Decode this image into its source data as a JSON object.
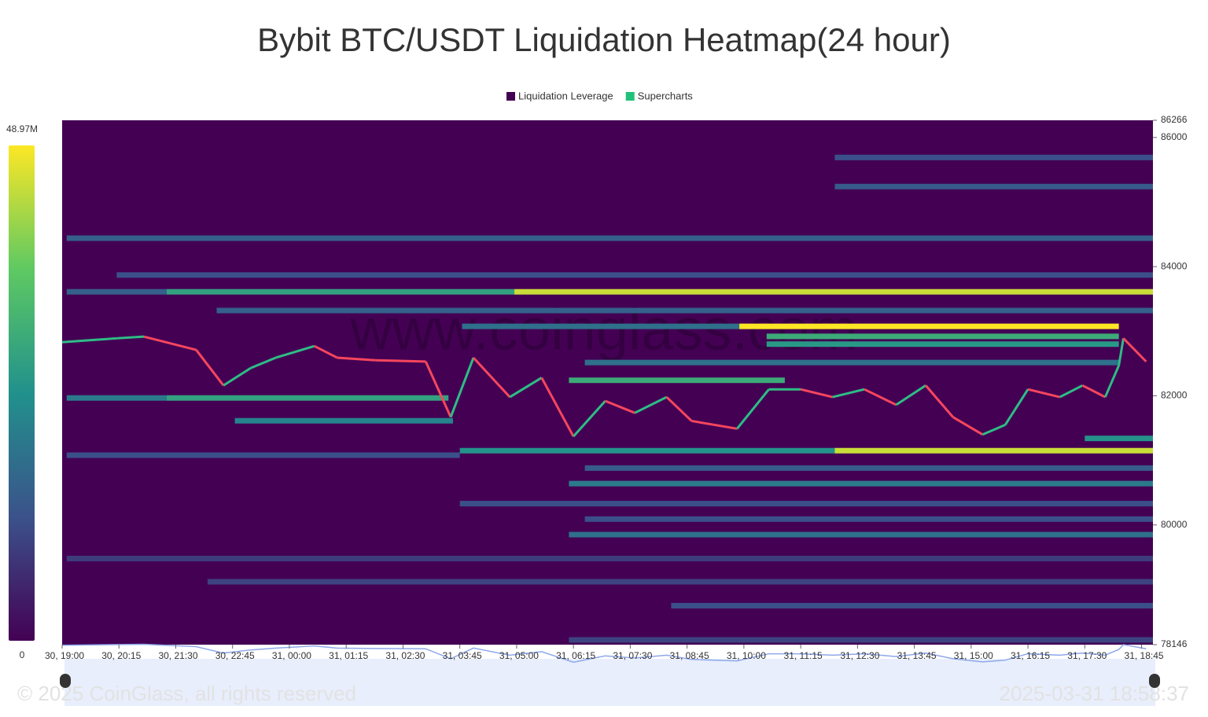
{
  "chart_data": {
    "type": "heatmap",
    "title": "Bybit BTC/USDT Liquidation Heatmap(24 hour)",
    "legend": [
      {
        "name": "Liquidation Leverage",
        "color": "#440154"
      },
      {
        "name": "Supercharts",
        "color": "#21c17a"
      }
    ],
    "watermark": "www.coinglass.com",
    "footer_left": "© 2025 CoinGlass, all rights reserved",
    "footer_right": "2025-03-31 18:58:37",
    "background_color": "#440154",
    "colorscale": [
      "#440154",
      "#3b528b",
      "#21918c",
      "#5ec962",
      "#fde725"
    ],
    "clim": [
      0,
      48.97
    ],
    "cticks": [
      {
        "value": 0,
        "label": "0"
      },
      {
        "value": 48.97,
        "label": "48.97M"
      }
    ],
    "xlim": [
      0,
      24
    ],
    "xticks": [
      {
        "value": 0,
        "label": "30, 19:00"
      },
      {
        "value": 1.25,
        "label": "30, 20:15"
      },
      {
        "value": 2.5,
        "label": "30, 21:30"
      },
      {
        "value": 3.75,
        "label": "30, 22:45"
      },
      {
        "value": 5,
        "label": "31, 00:00"
      },
      {
        "value": 6.25,
        "label": "31, 01:15"
      },
      {
        "value": 7.5,
        "label": "31, 02:30"
      },
      {
        "value": 8.75,
        "label": "31, 03:45"
      },
      {
        "value": 10,
        "label": "31, 05:00"
      },
      {
        "value": 11.25,
        "label": "31, 06:15"
      },
      {
        "value": 12.5,
        "label": "31, 07:30"
      },
      {
        "value": 13.75,
        "label": "31, 08:45"
      },
      {
        "value": 15,
        "label": "31, 10:00"
      },
      {
        "value": 16.25,
        "label": "31, 11:15"
      },
      {
        "value": 17.5,
        "label": "31, 12:30"
      },
      {
        "value": 18.75,
        "label": "31, 13:45"
      },
      {
        "value": 20,
        "label": "31, 15:00"
      },
      {
        "value": 21.25,
        "label": "31, 16:15"
      },
      {
        "value": 22.5,
        "label": "31, 17:30"
      },
      {
        "value": 23.75,
        "label": "31, 18:45"
      }
    ],
    "ylim": [
      78146,
      86266
    ],
    "yticks": [
      78146,
      80000,
      82000,
      84000,
      86000,
      86266
    ],
    "bands": [
      {
        "price": 83610,
        "start": 0.1,
        "end": 2.3,
        "value": 15
      },
      {
        "price": 83610,
        "start": 2.3,
        "end": 9.95,
        "value": 28
      },
      {
        "price": 83610,
        "start": 9.95,
        "end": 24,
        "value": 45
      },
      {
        "price": 83075,
        "start": 8.8,
        "end": 14.9,
        "value": 18
      },
      {
        "price": 83075,
        "start": 14.9,
        "end": 23.25,
        "value": 48.97
      },
      {
        "price": 82920,
        "start": 15.5,
        "end": 23.25,
        "value": 30
      },
      {
        "price": 82800,
        "start": 15.5,
        "end": 23.25,
        "value": 26
      },
      {
        "price": 82515,
        "start": 11.5,
        "end": 23.25,
        "value": 18
      },
      {
        "price": 82240,
        "start": 11.15,
        "end": 15.9,
        "value": 30
      },
      {
        "price": 81966,
        "start": 0.1,
        "end": 2.3,
        "value": 20
      },
      {
        "price": 81966,
        "start": 2.3,
        "end": 8.5,
        "value": 28
      },
      {
        "price": 81613,
        "start": 3.8,
        "end": 8.6,
        "value": 22
      },
      {
        "price": 81340,
        "start": 22.5,
        "end": 24,
        "value": 25
      },
      {
        "price": 81150,
        "start": 8.75,
        "end": 17,
        "value": 25
      },
      {
        "price": 81150,
        "start": 17,
        "end": 24,
        "value": 45
      },
      {
        "price": 81080,
        "start": 0.1,
        "end": 8.75,
        "value": 12
      },
      {
        "price": 80880,
        "start": 11.5,
        "end": 24,
        "value": 14
      },
      {
        "price": 80640,
        "start": 11.15,
        "end": 24,
        "value": 20
      },
      {
        "price": 80330,
        "start": 8.75,
        "end": 24,
        "value": 12
      },
      {
        "price": 80090,
        "start": 11.5,
        "end": 24,
        "value": 12
      },
      {
        "price": 79850,
        "start": 11.15,
        "end": 24,
        "value": 18
      },
      {
        "price": 79480,
        "start": 0.1,
        "end": 24,
        "value": 9
      },
      {
        "price": 79120,
        "start": 3.2,
        "end": 24,
        "value": 10
      },
      {
        "price": 78750,
        "start": 13.4,
        "end": 24,
        "value": 12
      },
      {
        "price": 78220,
        "start": 11.15,
        "end": 24,
        "value": 10
      },
      {
        "price": 83870,
        "start": 1.2,
        "end": 24,
        "value": 12
      },
      {
        "price": 83320,
        "start": 3.4,
        "end": 24,
        "value": 15
      },
      {
        "price": 84440,
        "start": 0.1,
        "end": 24,
        "value": 15
      },
      {
        "price": 85240,
        "start": 17,
        "end": 24,
        "value": 14
      },
      {
        "price": 85690,
        "start": 17,
        "end": 24,
        "value": 12
      }
    ],
    "price": {
      "x": [
        0,
        1.2,
        1.8,
        2.95,
        3.55,
        4.15,
        4.7,
        5.55,
        6.05,
        6.9,
        8.0,
        8.55,
        9.05,
        9.85,
        10.55,
        11.25,
        11.95,
        12.6,
        13.3,
        13.85,
        14.85,
        15.55,
        16.25,
        16.95,
        17.65,
        18.35,
        19.0,
        19.6,
        20.25,
        20.75,
        21.25,
        21.95,
        22.45,
        22.95,
        23.25,
        23.35,
        23.85
      ],
      "values": [
        82830,
        82890,
        82916,
        82710,
        82160,
        82430,
        82590,
        82770,
        82590,
        82550,
        82530,
        81670,
        82590,
        81980,
        82280,
        81370,
        81920,
        81735,
        81980,
        81610,
        81490,
        82100,
        82100,
        81980,
        82100,
        81860,
        82160,
        81670,
        81400,
        81550,
        82100,
        81980,
        82160,
        81980,
        82470,
        82890,
        82530
      ]
    }
  }
}
